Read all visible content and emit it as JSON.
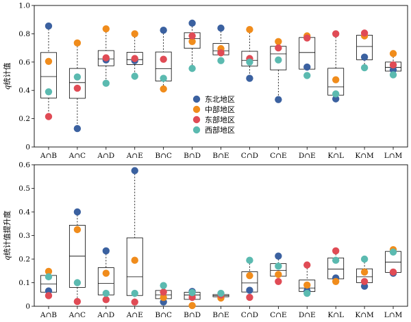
{
  "colors": {
    "东北地区": "#3b61a0",
    "中部地区": "#f08c1c",
    "东部地区": "#e04b55",
    "西部地区": "#5bbab0"
  },
  "legend": [
    "东北地区",
    "中部地区",
    "东部地区",
    "西部地区"
  ],
  "chart_data": [
    {
      "type": "box-scatter",
      "ylabel": "q统计值",
      "ylim": [
        0,
        1.0
      ],
      "yticks": [
        "0",
        "0.2",
        "0.4",
        "0.6",
        "0.8",
        "1.0"
      ],
      "categories": [
        "A∩B",
        "A∩C",
        "A∩D",
        "A∩E",
        "B∩C",
        "B∩D",
        "B∩E",
        "C∩D",
        "C∩E",
        "D∩E",
        "K∩L",
        "K∩M",
        "L∩M"
      ],
      "legend_position": "center",
      "series": [
        {
          "name": "东北地区",
          "values": [
            0.855,
            0.13,
            0.615,
            0.61,
            0.825,
            0.875,
            0.84,
            0.485,
            0.335,
            0.565,
            0.34,
            0.635,
            0.545
          ]
        },
        {
          "name": "中部地区",
          "values": [
            0.605,
            0.735,
            0.835,
            0.8,
            0.41,
            0.745,
            0.695,
            0.83,
            0.745,
            0.785,
            0.475,
            0.785,
            0.66
          ]
        },
        {
          "name": "东部地区",
          "values": [
            0.215,
            0.415,
            0.63,
            0.625,
            0.62,
            0.785,
            0.665,
            0.625,
            0.7,
            0.77,
            0.8,
            0.805,
            0.58
          ]
        },
        {
          "name": "西部地区",
          "values": [
            0.39,
            0.495,
            0.45,
            0.5,
            0.485,
            0.555,
            0.61,
            0.6,
            0.615,
            0.505,
            0.375,
            0.56,
            0.51
          ]
        }
      ]
    },
    {
      "type": "box-scatter",
      "ylabel": "q统计值提升度",
      "ylim": [
        0,
        0.6
      ],
      "yticks": [
        "0",
        "0.1",
        "0.2",
        "0.3",
        "0.4",
        "0.5",
        "0.6"
      ],
      "categories": [
        "A∩B",
        "A∩C",
        "A∩D",
        "A∩E",
        "B∩C",
        "B∩D",
        "B∩E",
        "C∩D",
        "C∩E",
        "D∩E",
        "K∩L",
        "K∩M",
        "L∩M"
      ],
      "series": [
        {
          "name": "东北地区",
          "values": [
            0.065,
            0.4,
            0.235,
            0.575,
            0.018,
            0.063,
            0.042,
            0.068,
            0.213,
            0.065,
            0.12,
            0.085,
            0.14
          ]
        },
        {
          "name": "中部地区",
          "values": [
            0.148,
            0.325,
            0.14,
            0.195,
            0.037,
            0.003,
            0.035,
            0.13,
            0.135,
            0.09,
            0.105,
            0.145,
            0.24
          ]
        },
        {
          "name": "东部地区",
          "values": [
            0.045,
            0.02,
            0.028,
            0.018,
            0.06,
            0.038,
            0.048,
            0.038,
            0.105,
            0.175,
            0.235,
            0.105,
            0.145
          ]
        },
        {
          "name": "西部地区",
          "values": [
            0.125,
            0.1,
            0.055,
            0.055,
            0.088,
            0.058,
            0.055,
            0.195,
            0.17,
            0.055,
            0.195,
            0.2,
            0.23
          ]
        }
      ]
    }
  ]
}
